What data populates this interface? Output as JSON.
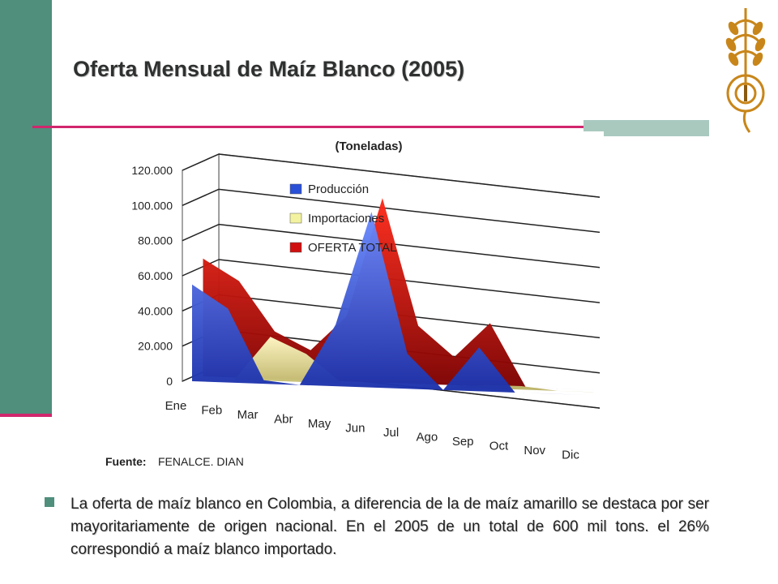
{
  "title": "Oferta Mensual de Maíz Blanco (2005)",
  "chart_data": {
    "type": "area",
    "subtitle": "(Toneladas)",
    "categories": [
      "Ene",
      "Feb",
      "Mar",
      "Abr",
      "May",
      "Jun",
      "Jul",
      "Ago",
      "Sep",
      "Oct",
      "Nov",
      "Dic"
    ],
    "yticks": [
      "0",
      "20.000",
      "40.000",
      "60.000",
      "80.000",
      "100.000",
      "120.000"
    ],
    "ylim": [
      0,
      120000
    ],
    "series": [
      {
        "name": "Producción",
        "color": "#2a50d8",
        "values": [
          55000,
          42000,
          2000,
          0,
          35000,
          100000,
          20000,
          0,
          25000,
          0,
          0,
          0
        ]
      },
      {
        "name": "Importaciones",
        "color": "#f2f2a0",
        "values": [
          0,
          0,
          25000,
          16000,
          0,
          0,
          0,
          0,
          2000,
          2000,
          0,
          0
        ]
      },
      {
        "name": "OFERTA TOTAL",
        "color": "#d01010",
        "values": [
          67000,
          55000,
          27000,
          17000,
          37000,
          105000,
          33000,
          16000,
          36000,
          0,
          0,
          0
        ]
      }
    ],
    "grid": true,
    "legend": "top-left",
    "source_label": "Fuente:",
    "source_value": "FENALCE. DIAN"
  },
  "bullet": {
    "text": "La oferta de maíz blanco en Colombia, a diferencia de la de maíz amarillo se destaca por ser mayoritariamente de origen nacional. En el 2005 de un total de 600 mil tons. el 26% correspondió a maíz blanco importado."
  },
  "colors": {
    "accent": "#d1266d",
    "sidebar": "#4f8f7c"
  }
}
